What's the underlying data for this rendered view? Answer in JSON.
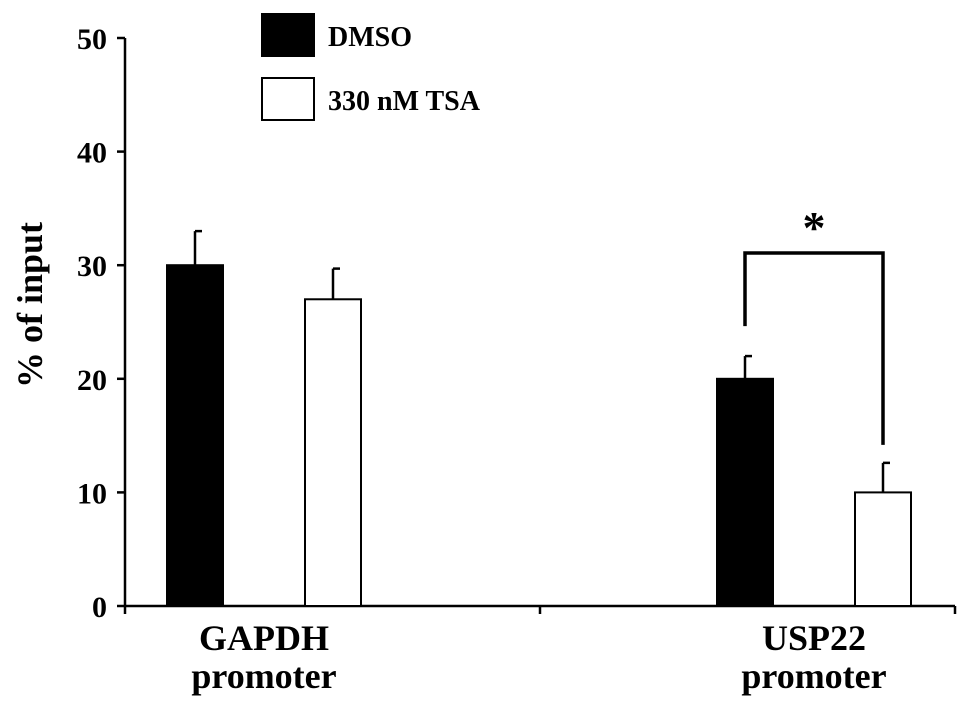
{
  "chart_data": {
    "type": "bar",
    "categories": [
      "GAPDH promoter",
      "USP22 promoter"
    ],
    "category_lines": [
      [
        "GAPDH",
        "promoter"
      ],
      [
        "USP22",
        "promoter"
      ]
    ],
    "series": [
      {
        "name": "DMSO",
        "values": [
          30,
          20
        ],
        "errors": [
          3,
          2
        ],
        "fill": "#000000"
      },
      {
        "name": "330 nM TSA",
        "values": [
          27,
          10
        ],
        "errors": [
          2.7,
          2.6
        ],
        "fill": "#ffffff"
      }
    ],
    "ylabel": "% of input",
    "ylim": [
      0,
      50
    ],
    "yticks": [
      0,
      10,
      20,
      30,
      40,
      50
    ],
    "grid": false,
    "legend_position": "top-left",
    "significance": [
      {
        "category": "USP22 promoter",
        "label": "*"
      }
    ]
  }
}
